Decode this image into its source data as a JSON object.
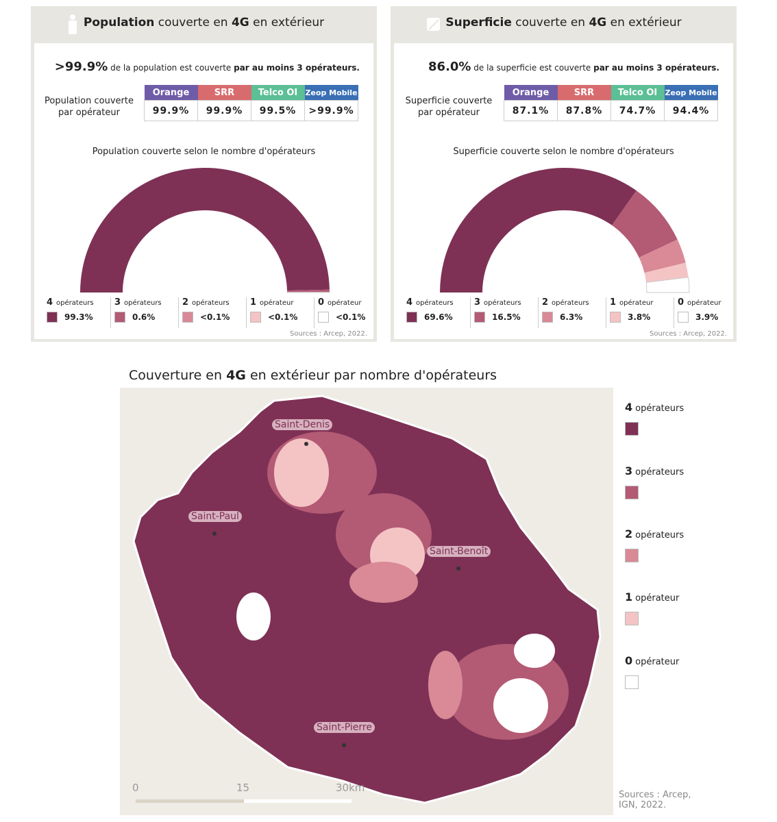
{
  "colors": {
    "ops4": "#7e3155",
    "ops3": "#b35a75",
    "ops2": "#d98a96",
    "ops1": "#f4c4c4",
    "ops0": "#ffffff",
    "orange": "#6e5ca8",
    "srr": "#d86b6e",
    "telco": "#5cbf95",
    "zeop": "#3a6fb5"
  },
  "panels": [
    {
      "title_bold": "Population",
      "title_mid": " couverte en ",
      "title_bold2": "4G",
      "title_end": " en extérieur",
      "icon": "person-icon",
      "headline_value": ">99.9%",
      "headline_text": " de la population est couverte ",
      "headline_bold": "par au moins 3 opérateurs.",
      "table_label": "Population couverte par opérateur",
      "operators": [
        "Orange",
        "SRR",
        "Telco OI",
        "Zeop Mobile"
      ],
      "values": [
        "99.9%",
        "99.9%",
        "99.5%",
        ">99.9%"
      ],
      "chart_title": "Population couverte selon le nombre d'opérateurs",
      "source": "Sources : Arcep, 2022."
    },
    {
      "title_bold": "Superficie",
      "title_mid": " couverte en ",
      "title_bold2": "4G",
      "title_end": " en extérieur",
      "icon": "area-icon",
      "headline_value": "86.0%",
      "headline_text": " de la superficie est couverte ",
      "headline_bold": "par au moins 3 opérateurs.",
      "table_label": "Superficie couverte par opérateur",
      "operators": [
        "Orange",
        "SRR",
        "Telco OI",
        "Zeop Mobile"
      ],
      "values": [
        "87.1%",
        "87.8%",
        "74.7%",
        "94.4%"
      ],
      "chart_title": "Superficie couverte selon le nombre d'opérateurs",
      "source": "Sources : Arcep, 2022."
    }
  ],
  "chart_data": [
    {
      "type": "pie",
      "style": "half-donut",
      "title": "Population couverte selon le nombre d'opérateurs",
      "categories": [
        "4",
        "3",
        "2",
        "1",
        "0"
      ],
      "category_units": [
        "opérateurs",
        "opérateurs",
        "opérateurs",
        "opérateur",
        "opérateur"
      ],
      "values": [
        99.3,
        0.6,
        0.05,
        0.05,
        0.05
      ],
      "labels": [
        "99.3%",
        "0.6%",
        "<0.1%",
        "<0.1%",
        "<0.1%"
      ]
    },
    {
      "type": "pie",
      "style": "half-donut",
      "title": "Superficie couverte selon le nombre d'opérateurs",
      "categories": [
        "4",
        "3",
        "2",
        "1",
        "0"
      ],
      "category_units": [
        "opérateurs",
        "opérateurs",
        "opérateurs",
        "opérateur",
        "opérateur"
      ],
      "values": [
        69.6,
        16.5,
        6.3,
        3.8,
        3.9
      ],
      "labels": [
        "69.6%",
        "16.5%",
        "6.3%",
        "3.8%",
        "3.9%"
      ]
    }
  ],
  "map": {
    "title_a": "Couverture en ",
    "title_b": "4G",
    "title_c": " en extérieur par nombre d'opérateurs",
    "towns": [
      "Saint-Denis",
      "Saint-Paul",
      "Saint-Benoît",
      "Saint-Pierre"
    ],
    "scale": [
      "0",
      "15",
      "30km"
    ],
    "legend": [
      {
        "n": "4",
        "t": "opérateurs"
      },
      {
        "n": "3",
        "t": "opérateurs"
      },
      {
        "n": "2",
        "t": "opérateurs"
      },
      {
        "n": "1",
        "t": "opérateur"
      },
      {
        "n": "0",
        "t": "opérateur"
      }
    ],
    "source": "Sources : Arcep, IGN, 2022."
  }
}
